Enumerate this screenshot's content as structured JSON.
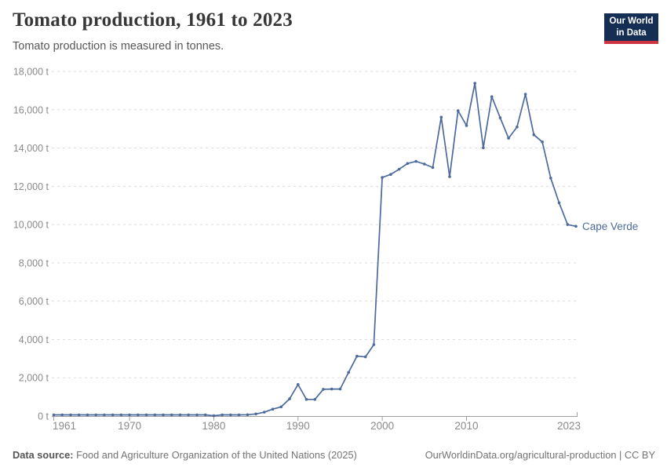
{
  "header": {
    "title": "Tomato production, 1961 to 2023",
    "subtitle": "Tomato production is measured in tonnes.",
    "logo": {
      "line1": "Our World",
      "line2": "in Data"
    }
  },
  "chart_data": {
    "type": "line",
    "title": "Tomato production, 1961 to 2023",
    "unit": "tonnes",
    "ylim": [
      0,
      18000
    ],
    "xlim": [
      1961,
      2023
    ],
    "grid": "horizontal dashed",
    "legend": "end-of-line entity label",
    "yticks": [
      {
        "value": 0,
        "label": "0 t"
      },
      {
        "value": 2000,
        "label": "2,000 t"
      },
      {
        "value": 4000,
        "label": "4,000 t"
      },
      {
        "value": 6000,
        "label": "6,000 t"
      },
      {
        "value": 8000,
        "label": "8,000 t"
      },
      {
        "value": 10000,
        "label": "10,000 t"
      },
      {
        "value": 12000,
        "label": "12,000 t"
      },
      {
        "value": 14000,
        "label": "14,000 t"
      },
      {
        "value": 16000,
        "label": "16,000 t"
      },
      {
        "value": 18000,
        "label": "18,000 t"
      }
    ],
    "xticks": [
      {
        "value": 1961,
        "label": "1961"
      },
      {
        "value": 1970,
        "label": "1970"
      },
      {
        "value": 1980,
        "label": "1980"
      },
      {
        "value": 1990,
        "label": "1990"
      },
      {
        "value": 2000,
        "label": "2000"
      },
      {
        "value": 2010,
        "label": "2010"
      },
      {
        "value": 2023,
        "label": "2023"
      }
    ],
    "series": [
      {
        "name": "Cape Verde",
        "color": "#4c6a9c",
        "x": [
          1961,
          1962,
          1963,
          1964,
          1965,
          1966,
          1967,
          1968,
          1969,
          1970,
          1971,
          1972,
          1973,
          1974,
          1975,
          1976,
          1977,
          1978,
          1979,
          1980,
          1981,
          1982,
          1983,
          1984,
          1985,
          1986,
          1987,
          1988,
          1989,
          1990,
          1991,
          1992,
          1993,
          1994,
          1995,
          1996,
          1997,
          1998,
          1999,
          2000,
          2001,
          2002,
          2003,
          2004,
          2005,
          2006,
          2007,
          2008,
          2009,
          2010,
          2011,
          2012,
          2013,
          2014,
          2015,
          2016,
          2017,
          2018,
          2019,
          2020,
          2021,
          2022,
          2023
        ],
        "values": [
          60,
          60,
          60,
          60,
          60,
          60,
          60,
          60,
          60,
          60,
          60,
          60,
          60,
          60,
          60,
          60,
          60,
          60,
          60,
          15,
          60,
          60,
          60,
          70,
          110,
          200,
          360,
          480,
          900,
          1650,
          870,
          870,
          1400,
          1410,
          1410,
          2280,
          3130,
          3090,
          3730,
          12460,
          12620,
          12890,
          13190,
          13300,
          13160,
          12980,
          15610,
          12500,
          15950,
          15170,
          17380,
          14010,
          16680,
          15580,
          14510,
          15100,
          16810,
          14690,
          14320,
          12430,
          11140,
          10000,
          9910
        ]
      }
    ]
  },
  "footer": {
    "source_label": "Data source:",
    "source_text": " Food and Agriculture Organization of the United Nations (2025)",
    "link": "OurWorldinData.org/agricultural-production",
    "separator": " | ",
    "license": "CC BY"
  },
  "colors": {
    "line": "#4c6a9c",
    "grid": "#dcdcdc",
    "axis": "#9e9e9e",
    "tick_text": "#8a8a8a",
    "entity_label": "#4c6a9c"
  }
}
